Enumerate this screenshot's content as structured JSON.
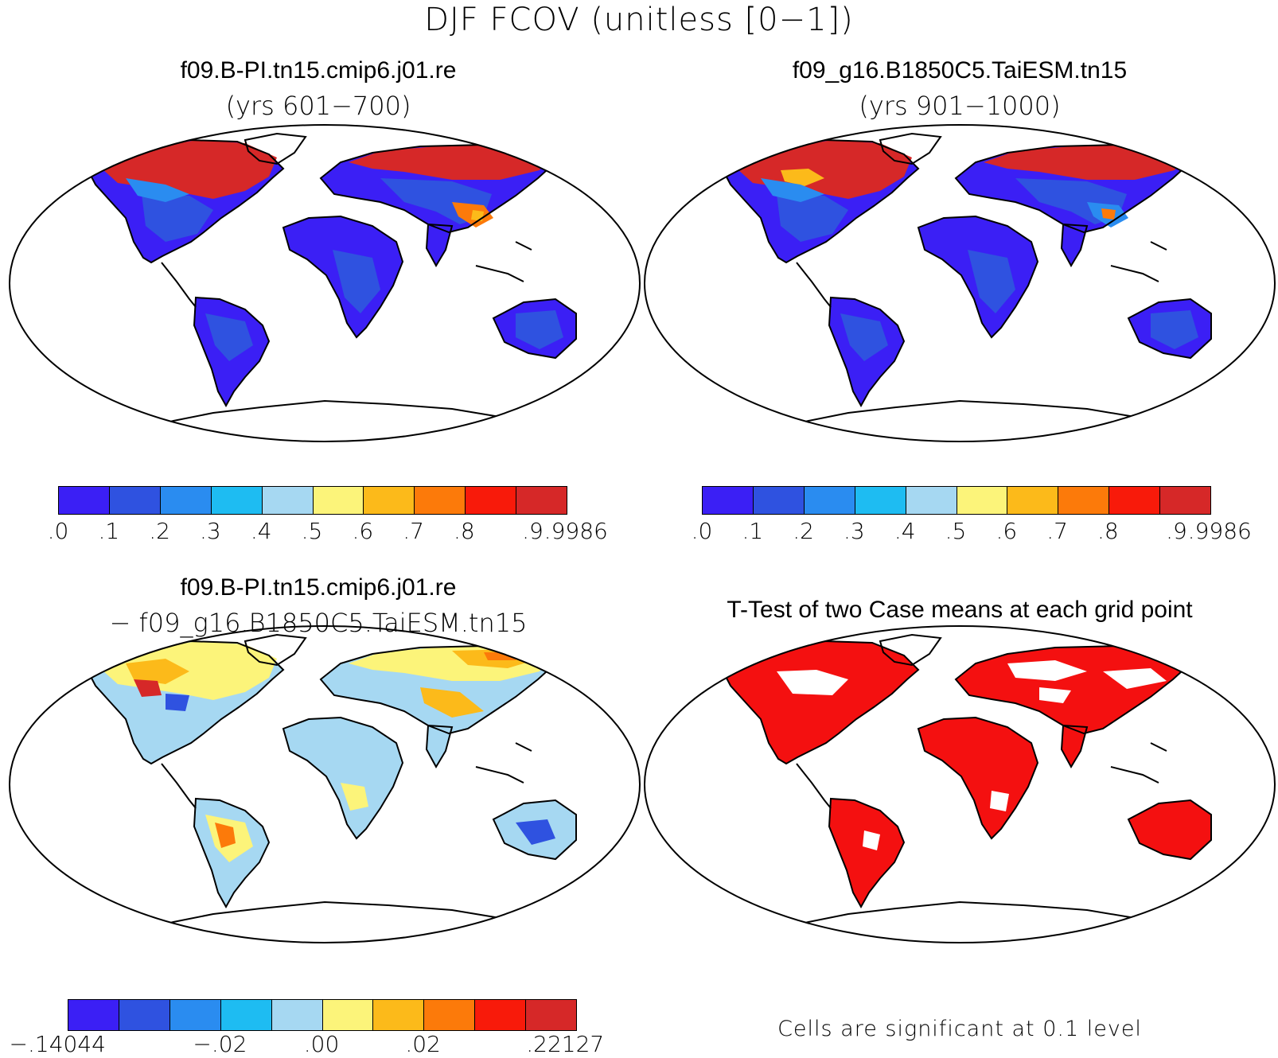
{
  "main_title": "DJF FCOV (unitless [0−1])",
  "panels": [
    {
      "title": "f09.B-PI.tn15.cmip6.j01.re",
      "subtitle": "(yrs 601−700)"
    },
    {
      "title": "f09_g16.B1850C5.TaiESM.tn15",
      "subtitle": "(yrs 901−1000)"
    },
    {
      "title": "f09.B-PI.tn15.cmip6.j01.re",
      "subtitle": "− f09_g16.B1850C5.TaiESM.tn15"
    },
    {
      "title": "T-Test of two Case means at each grid point",
      "subtitle": ""
    }
  ],
  "colorbar_top": {
    "colors": [
      "#3b1ff5",
      "#2f52e0",
      "#2a8cf0",
      "#1ebcf2",
      "#a6d8f2",
      "#fcf47a",
      "#fcba1a",
      "#fc7a0a",
      "#f81a0a",
      "#d62828"
    ],
    "labels": [
      ".0",
      ".1",
      ".2",
      ".3",
      ".4",
      ".5",
      ".6",
      ".7",
      ".8",
      ".9",
      ".9986"
    ]
  },
  "colorbar_diff": {
    "colors": [
      "#3b1ff5",
      "#2f52e0",
      "#2a8cf0",
      "#1ebcf2",
      "#a6d8f2",
      "#fcf47a",
      "#fcba1a",
      "#fc7a0a",
      "#f81a0a",
      "#d62828"
    ],
    "labels": [
      "−.14044",
      "−.02",
      ".00",
      ".02",
      ".22127"
    ]
  },
  "significance_note": "Cells are significant at 0.1 level",
  "significance_color": "#f41010",
  "land_colors": {
    "cold_north": "#d62828",
    "low_veg": "#3b1ff5",
    "mid_veg": "#2f52e0",
    "diff_base": "#a6d8f2",
    "diff_warm": "#fcba1a"
  }
}
